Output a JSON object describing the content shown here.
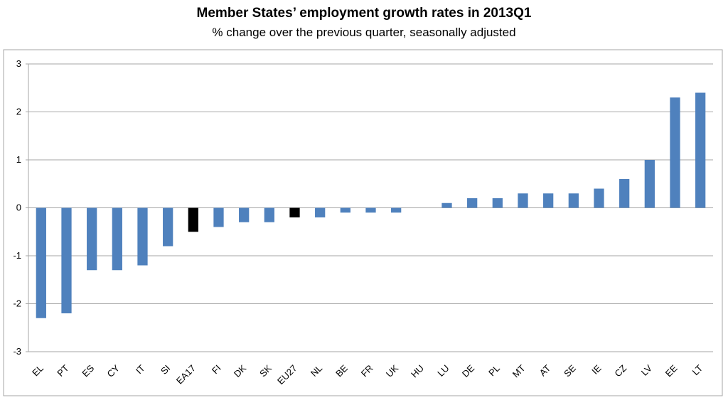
{
  "chart_data": {
    "type": "bar",
    "title": "Member States’ employment growth rates in 2013Q1",
    "subtitle": "% change over the previous quarter, seasonally adjusted",
    "categories": [
      "EL",
      "PT",
      "ES",
      "CY",
      "IT",
      "SI",
      "EA17",
      "FI",
      "DK",
      "SK",
      "EU27",
      "NL",
      "BE",
      "FR",
      "UK",
      "HU",
      "LU",
      "DE",
      "PL",
      "MT",
      "AT",
      "SE",
      "IE",
      "CZ",
      "LV",
      "EE",
      "LT"
    ],
    "values": [
      -2.3,
      -2.2,
      -1.3,
      -1.3,
      -1.2,
      -0.8,
      -0.5,
      -0.4,
      -0.3,
      -0.3,
      -0.2,
      -0.2,
      -0.1,
      -0.1,
      -0.1,
      0.0,
      0.1,
      0.2,
      0.2,
      0.3,
      0.3,
      0.3,
      0.4,
      0.6,
      1.0,
      2.3,
      2.4
    ],
    "aggregates": [
      "EA17",
      "EU27"
    ],
    "ylim": [
      -3,
      3
    ],
    "yticks": [
      -3,
      -2,
      -1,
      0,
      1,
      2,
      3
    ],
    "grid": true,
    "legend": "none",
    "colors": {
      "bar": "#4F81BD",
      "aggregate": "#000000",
      "grid": "#A6A6A6",
      "frame": "#A6A6A6"
    }
  }
}
